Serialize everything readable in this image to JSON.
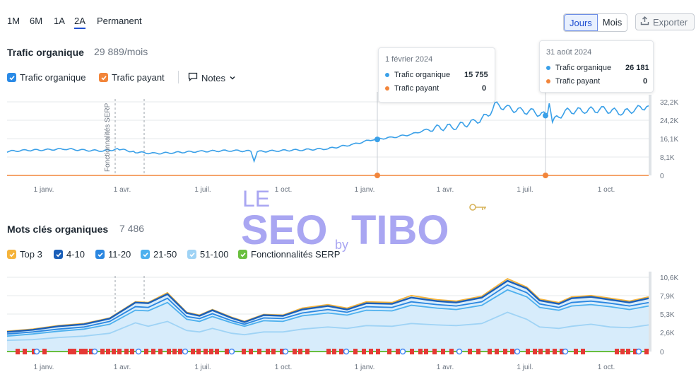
{
  "ranges": [
    "1M",
    "6M",
    "1A",
    "2A",
    "Permanent"
  ],
  "active_range": "2A",
  "granularity": {
    "left": "Jours",
    "right": "Mois"
  },
  "export_label": "Exporter",
  "organic": {
    "title": "Trafic organique",
    "count": "29 889/mois",
    "legend": {
      "organic": "Trafic organique",
      "paid": "Trafic payant",
      "notes": "Notes"
    },
    "serp_note": "Fonctionnalités SERP"
  },
  "tooltips": [
    {
      "date": "1 février 2024",
      "organic_label": "Trafic organique",
      "organic_value": "15 755",
      "paid_label": "Trafic payant",
      "paid_value": "0"
    },
    {
      "date": "31 août 2024",
      "organic_label": "Trafic organique",
      "organic_value": "26 181",
      "paid_label": "Trafic payant",
      "paid_value": "0"
    }
  ],
  "keywords": {
    "title": "Mots clés organiques",
    "count": "7 486",
    "legend": [
      "Top 3",
      "4-10",
      "11-20",
      "21-50",
      "51-100",
      "Fonctionnalités SERP"
    ]
  },
  "watermark": {
    "le": "LE",
    "seo": "SEO",
    "by": "by",
    "tibo": "TIBO"
  },
  "colors": {
    "organic": "#3aa0e8",
    "paid": "#f2853a",
    "top3": "#f5b33a",
    "k4_10": "#1b5fb8",
    "k11_20": "#2a86e0",
    "k21_50": "#4db0ee",
    "k51_100": "#9fd3f5",
    "serp": "#6abf3f"
  },
  "chart_data": [
    {
      "type": "line",
      "title": "",
      "x_ticks": [
        "1 janv.",
        "1 avr.",
        "1 juil.",
        "1 oct.",
        "1 janv.",
        "1 avr.",
        "1 juil.",
        "1 oct."
      ],
      "y_ticks": [
        "32,2K",
        "24,2K",
        "16,1K",
        "8,1K",
        "0"
      ],
      "ylim": [
        0,
        32200
      ],
      "series": [
        {
          "name": "Trafic organique",
          "x": [
            0,
            0.03,
            0.06,
            0.09,
            0.12,
            0.15,
            0.175,
            0.2,
            0.23,
            0.26,
            0.3,
            0.35,
            0.38,
            0.385,
            0.39,
            0.42,
            0.46,
            0.5,
            0.54,
            0.57,
            0.6,
            0.63,
            0.66,
            0.7,
            0.73,
            0.75,
            0.76,
            0.78,
            0.8,
            0.82,
            0.84,
            0.845,
            0.85,
            0.87,
            0.9,
            0.93,
            0.96,
            0.98,
            1
          ],
          "values": [
            10500,
            11000,
            11200,
            11600,
            11000,
            10800,
            11500,
            10200,
            9600,
            10000,
            10500,
            10900,
            10600,
            6200,
            10400,
            10800,
            11200,
            11700,
            13600,
            15755,
            16600,
            18000,
            20500,
            21500,
            23500,
            26300,
            31000,
            29500,
            28300,
            27800,
            26181,
            30200,
            23500,
            28000,
            28500,
            28800,
            27500,
            29000,
            30500
          ]
        },
        {
          "name": "Trafic payant",
          "x": [
            0,
            1
          ],
          "values": [
            0,
            0
          ]
        }
      ]
    },
    {
      "type": "area",
      "title": "",
      "x_ticks": [
        "1 janv.",
        "1 avr.",
        "1 juil.",
        "1 oct.",
        "1 janv.",
        "1 avr.",
        "1 juil.",
        "1 oct."
      ],
      "y_ticks": [
        "10,6K",
        "7,9K",
        "5,3K",
        "2,6K",
        "0"
      ],
      "ylim": [
        0,
        10600
      ],
      "series": [
        {
          "name": "Top 3",
          "x": [
            0,
            0.04,
            0.08,
            0.12,
            0.16,
            0.2,
            0.22,
            0.25,
            0.28,
            0.3,
            0.32,
            0.35,
            0.37,
            0.4,
            0.43,
            0.46,
            0.5,
            0.53,
            0.56,
            0.6,
            0.63,
            0.67,
            0.7,
            0.74,
            0.78,
            0.81,
            0.83,
            0.86,
            0.88,
            0.91,
            0.94,
            0.97,
            1
          ],
          "values": [
            2900,
            3200,
            3700,
            4000,
            4800,
            7100,
            7000,
            8400,
            5600,
            5200,
            6000,
            4900,
            4300,
            5300,
            5200,
            6200,
            6700,
            6200,
            7100,
            7000,
            8000,
            7400,
            7200,
            7900,
            10400,
            9200,
            7500,
            7000,
            7800,
            8000,
            7600,
            7200,
            7800
          ]
        },
        {
          "name": "4-10",
          "x": [
            0,
            0.04,
            0.08,
            0.12,
            0.16,
            0.2,
            0.22,
            0.25,
            0.28,
            0.3,
            0.32,
            0.35,
            0.37,
            0.4,
            0.43,
            0.46,
            0.5,
            0.53,
            0.56,
            0.6,
            0.63,
            0.67,
            0.7,
            0.74,
            0.78,
            0.81,
            0.83,
            0.86,
            0.88,
            0.91,
            0.94,
            0.97,
            1
          ],
          "values": [
            2800,
            3100,
            3600,
            3900,
            4700,
            7000,
            6900,
            8200,
            5500,
            5100,
            5900,
            4800,
            4200,
            5200,
            5100,
            6000,
            6500,
            6000,
            6900,
            6800,
            7700,
            7200,
            7000,
            7700,
            10100,
            9000,
            7300,
            6800,
            7600,
            7800,
            7400,
            7000,
            7600
          ]
        },
        {
          "name": "11-20",
          "x": [
            0,
            0.04,
            0.08,
            0.12,
            0.16,
            0.2,
            0.22,
            0.25,
            0.28,
            0.3,
            0.32,
            0.35,
            0.37,
            0.4,
            0.43,
            0.46,
            0.5,
            0.53,
            0.56,
            0.6,
            0.63,
            0.67,
            0.7,
            0.74,
            0.78,
            0.81,
            0.83,
            0.86,
            0.88,
            0.91,
            0.94,
            0.97,
            1
          ],
          "values": [
            2500,
            2800,
            3200,
            3500,
            4300,
            6400,
            6300,
            7600,
            5000,
            4700,
            5400,
            4400,
            3900,
            4800,
            4700,
            5500,
            6000,
            5600,
            6400,
            6300,
            7100,
            6700,
            6500,
            7100,
            9500,
            8400,
            6800,
            6300,
            7000,
            7200,
            6900,
            6500,
            7000
          ]
        },
        {
          "name": "21-50",
          "x": [
            0,
            0.04,
            0.08,
            0.12,
            0.16,
            0.2,
            0.22,
            0.25,
            0.28,
            0.3,
            0.32,
            0.35,
            0.37,
            0.4,
            0.43,
            0.46,
            0.5,
            0.53,
            0.56,
            0.6,
            0.63,
            0.67,
            0.7,
            0.74,
            0.78,
            0.81,
            0.83,
            0.86,
            0.88,
            0.91,
            0.94,
            0.97,
            1
          ],
          "values": [
            2200,
            2500,
            2900,
            3200,
            3900,
            5900,
            5800,
            7000,
            4600,
            4300,
            5000,
            4100,
            3600,
            4400,
            4300,
            5100,
            5500,
            5200,
            5900,
            5800,
            6600,
            6200,
            6000,
            6600,
            8800,
            7800,
            6300,
            5900,
            6500,
            6700,
            6400,
            6000,
            6500
          ]
        },
        {
          "name": "51-100",
          "x": [
            0,
            0.04,
            0.08,
            0.12,
            0.16,
            0.2,
            0.22,
            0.25,
            0.28,
            0.3,
            0.32,
            0.35,
            0.37,
            0.4,
            0.43,
            0.46,
            0.5,
            0.53,
            0.56,
            0.6,
            0.63,
            0.67,
            0.7,
            0.74,
            0.78,
            0.81,
            0.83,
            0.86,
            0.88,
            0.91,
            0.94,
            0.97,
            1
          ],
          "values": [
            1600,
            1700,
            2000,
            2200,
            2600,
            4100,
            3600,
            4300,
            3000,
            2800,
            3300,
            2600,
            2400,
            2800,
            2800,
            3200,
            3500,
            3300,
            3700,
            3600,
            4000,
            3800,
            3700,
            4000,
            5600,
            4600,
            3500,
            3300,
            3600,
            3900,
            3500,
            3400,
            3800
          ]
        }
      ]
    }
  ]
}
